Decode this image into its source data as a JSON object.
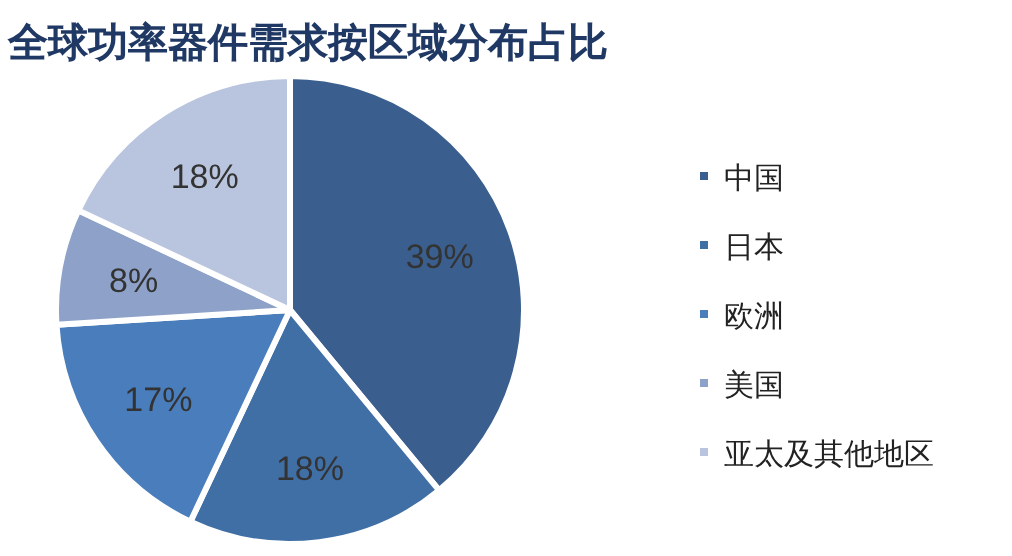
{
  "chart_data": {
    "type": "pie",
    "title": "全球功率器件需求按区域分布占比",
    "categories": [
      "中国",
      "日本",
      "欧洲",
      "美国",
      "亚太及其他地区"
    ],
    "values": [
      39,
      18,
      17,
      8,
      18
    ],
    "colors": [
      "#3a5f8f",
      "#406fa6",
      "#4a7dbb",
      "#8ea2c9",
      "#b9c5de"
    ],
    "value_labels": [
      "39%",
      "18%",
      "17%",
      "8%",
      "18%"
    ],
    "legend": "right"
  }
}
